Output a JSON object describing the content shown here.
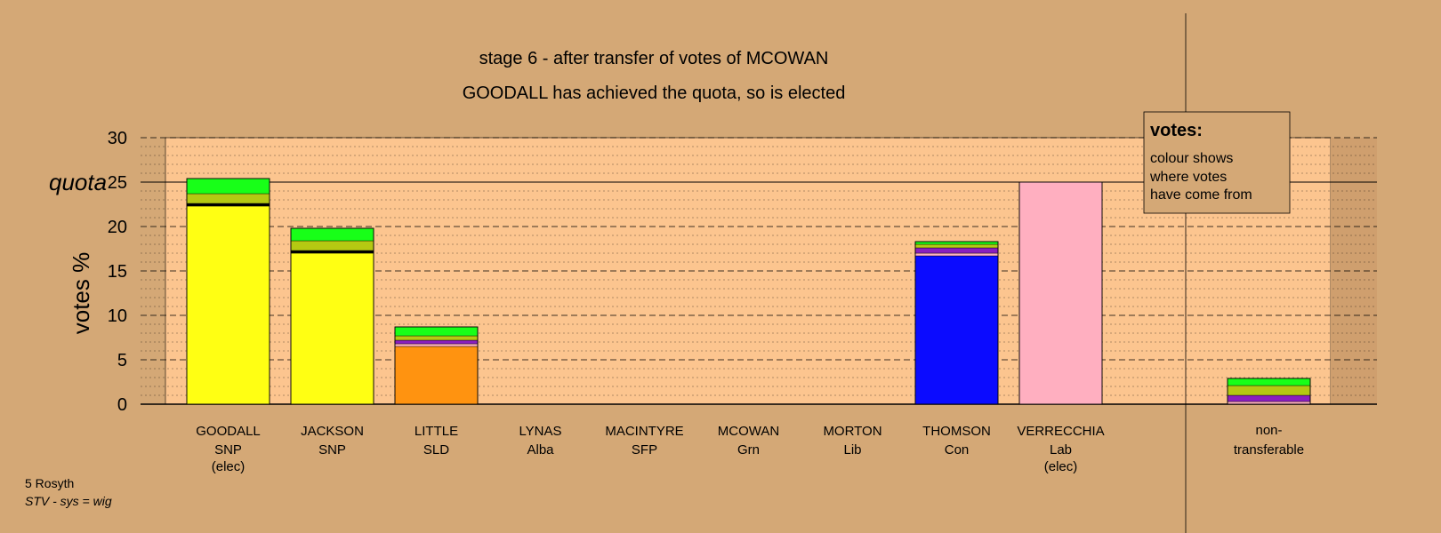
{
  "chart_data": {
    "type": "bar",
    "title": "stage 6 - after transfer of votes of MCOWAN",
    "subtitle": "GOODALL has achieved the quota, so is elected",
    "ylabel": "votes %",
    "ylim": [
      0,
      30
    ],
    "yticks": [
      "0",
      "5",
      "10",
      "15",
      "20",
      "25",
      "30"
    ],
    "quota": {
      "label": "quota",
      "value": 25
    },
    "legend": {
      "title": "votes:",
      "lines": [
        "colour shows",
        "where votes",
        "have come from"
      ]
    },
    "candidates": [
      {
        "name": "GOODALL",
        "party": "SNP",
        "status": "(elec)",
        "segments": [
          {
            "value": 22.3,
            "color": "#ffff13"
          },
          {
            "value": 0.3,
            "color": "#000000"
          },
          {
            "value": 1.1,
            "color": "#b5c912"
          },
          {
            "value": 1.7,
            "color": "#18ff18"
          }
        ]
      },
      {
        "name": "JACKSON",
        "party": "SNP",
        "status": "",
        "segments": [
          {
            "value": 17.0,
            "color": "#ffff13"
          },
          {
            "value": 0.3,
            "color": "#000000"
          },
          {
            "value": 1.1,
            "color": "#b5c912"
          },
          {
            "value": 1.4,
            "color": "#18ff18"
          }
        ]
      },
      {
        "name": "LITTLE",
        "party": "SLD",
        "status": "",
        "segments": [
          {
            "value": 6.5,
            "color": "#ff9310"
          },
          {
            "value": 0.3,
            "color": "#ffb0c0"
          },
          {
            "value": 0.4,
            "color": "#8a1fbf"
          },
          {
            "value": 0.5,
            "color": "#b5c912"
          },
          {
            "value": 1.0,
            "color": "#18ff18"
          }
        ]
      },
      {
        "name": "LYNAS",
        "party": "Alba",
        "status": "",
        "segments": []
      },
      {
        "name": "MACINTYRE",
        "party": "SFP",
        "status": "",
        "segments": []
      },
      {
        "name": "MCOWAN",
        "party": "Grn",
        "status": "",
        "segments": []
      },
      {
        "name": "MORTON",
        "party": "Lib",
        "status": "",
        "segments": []
      },
      {
        "name": "THOMSON",
        "party": "Con",
        "status": "",
        "segments": [
          {
            "value": 16.7,
            "color": "#0b0bff"
          },
          {
            "value": 0.3,
            "color": "#ffb0c0"
          },
          {
            "value": 0.6,
            "color": "#8a1fbf"
          },
          {
            "value": 0.4,
            "color": "#b5c912"
          },
          {
            "value": 0.3,
            "color": "#18ff18"
          }
        ]
      },
      {
        "name": "VERRECCHIA",
        "party": "Lab",
        "status": "(elec)",
        "segments": [
          {
            "value": 25.0,
            "color": "#ffafc0"
          }
        ]
      }
    ],
    "nontransferable": {
      "label_line1": "non-",
      "label_line2": "transferable",
      "segments": [
        {
          "value": 0.3,
          "color": "#ffb0c0"
        },
        {
          "value": 0.7,
          "color": "#8a1fbf"
        },
        {
          "value": 1.1,
          "color": "#b5c912"
        },
        {
          "value": 0.8,
          "color": "#18ff18"
        }
      ]
    }
  },
  "footer": {
    "line1": "5 Rosyth",
    "line2": "STV - sys = wig"
  },
  "colors": {
    "background": "#d4a876",
    "plot_area": "#fcc58f"
  }
}
